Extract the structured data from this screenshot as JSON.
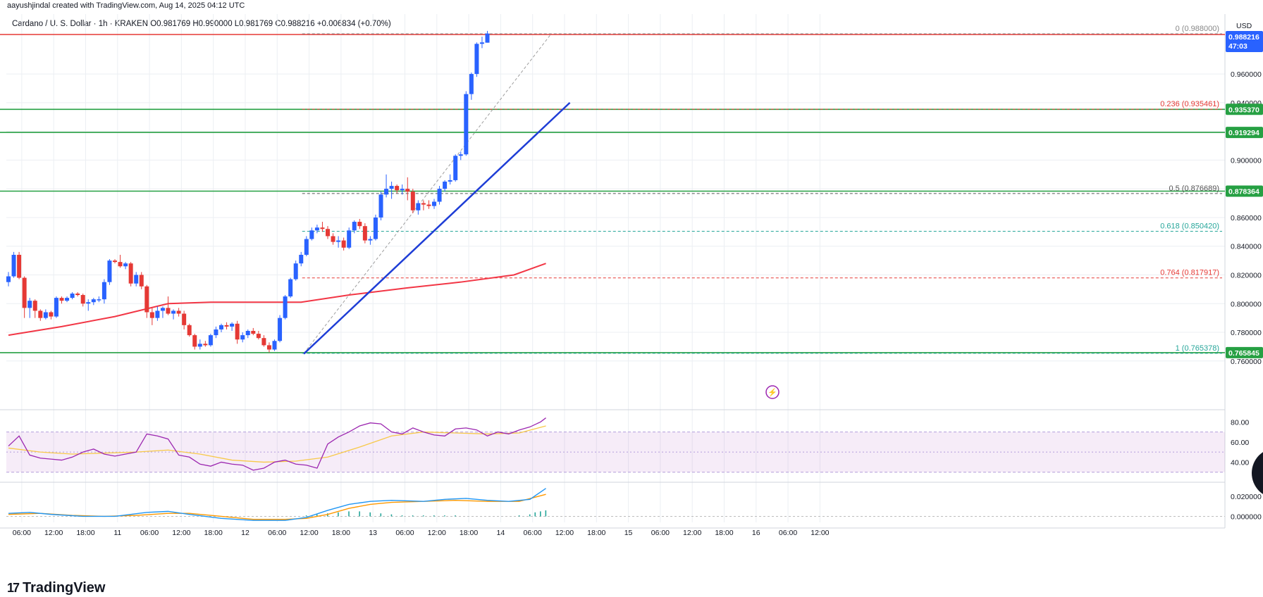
{
  "header": {
    "author_line": "aayushjindal created with TradingView.com, Aug 14, 2025 04:12 UTC",
    "symbol_line": "Cardano / U. S. Dollar · 1h · KRAKEN  O0.981769  H0.990000  L0.981769  C0.988216  +0.006834 (+0.70%)"
  },
  "brand": {
    "name": "TradingView",
    "logo": "17"
  },
  "currency_label": "USD",
  "last_price_tag": {
    "price": "0.988216",
    "countdown": "47:03",
    "color": "#2962ff"
  },
  "colors": {
    "up": "#2962ff",
    "down": "#e53935",
    "sma": "#f23645",
    "trendline": "#1e3dd6",
    "support": "#26a043",
    "rsi": "#9c27b0",
    "rsi_ma": "#f7c948",
    "macd": "#2196f3",
    "signal": "#ff9800",
    "hist": "#26a69a"
  },
  "chart_data": {
    "type": "candlestick",
    "instrument": "Cardano / U. S. Dollar",
    "timeframe": "1h",
    "exchange": "KRAKEN",
    "ohlc": {
      "open": 0.981769,
      "high": 0.99,
      "low": 0.981769,
      "close": 0.988216,
      "change": 0.006834,
      "change_pct": "+0.70%"
    },
    "y_range": [
      0.75,
      1.0
    ],
    "price_ticks": [
      "0.960000",
      "0.940000",
      "0.920000",
      "0.900000",
      "0.880000",
      "0.860000",
      "0.840000",
      "0.820000",
      "0.800000",
      "0.780000",
      "0.760000"
    ],
    "price_tick_values": [
      0.96,
      0.94,
      0.92,
      0.9,
      0.88,
      0.86,
      0.84,
      0.82,
      0.8,
      0.78,
      0.76
    ],
    "time_ticks": [
      "06:00",
      "12:00",
      "18:00",
      "11",
      "06:00",
      "12:00",
      "18:00",
      "12",
      "06:00",
      "12:00",
      "18:00",
      "13",
      "06:00",
      "12:00",
      "18:00",
      "14",
      "06:00",
      "12:00",
      "18:00",
      "15",
      "06:00",
      "12:00",
      "18:00",
      "16",
      "06:00",
      "12:00"
    ],
    "time_tick_hours": [
      6,
      12,
      18,
      24,
      30,
      36,
      42,
      48,
      54,
      60,
      66,
      72,
      78,
      84,
      90,
      96,
      102,
      108,
      114,
      120,
      126,
      132,
      138,
      144,
      150,
      156
    ],
    "horizontal_levels": [
      {
        "label": "0.935370",
        "value": 0.93537,
        "color": "#26a043"
      },
      {
        "label": "0.919294",
        "value": 0.919294,
        "color": "#26a043"
      },
      {
        "label": "0.878364",
        "value": 0.878364,
        "color": "#26a043"
      },
      {
        "label": "0.765845",
        "value": 0.765845,
        "color": "#26a043"
      }
    ],
    "resistance_line": {
      "value": 0.989,
      "color": "#e53935"
    },
    "fibonacci": [
      {
        "ratio": "0",
        "value": 0.988,
        "label": "0 (0.988000)",
        "color": "#888888"
      },
      {
        "ratio": "0.236",
        "value": 0.935461,
        "label": "0.236 (0.935461)",
        "color": "#e53935"
      },
      {
        "ratio": "0.5",
        "value": 0.876689,
        "label": "0.5 (0.876689)",
        "color": "#555555"
      },
      {
        "ratio": "0.618",
        "value": 0.85042,
        "label": "0.618 (0.850420)",
        "color": "#26a69a"
      },
      {
        "ratio": "0.764",
        "value": 0.817917,
        "label": "0.764 (0.817917)",
        "color": "#e53935"
      },
      {
        "ratio": "1",
        "value": 0.765378,
        "label": "1 (0.765378)",
        "color": "#26a69a"
      }
    ],
    "trendline": {
      "from": [
        55.5,
        0.765
      ],
      "to": [
        105.5,
        0.94
      ]
    },
    "candles": [
      [
        0.815,
        0.822,
        0.812,
        0.819
      ],
      [
        0.819,
        0.836,
        0.818,
        0.834
      ],
      [
        0.834,
        0.836,
        0.817,
        0.818
      ],
      [
        0.818,
        0.819,
        0.79,
        0.797
      ],
      [
        0.797,
        0.804,
        0.79,
        0.802
      ],
      [
        0.802,
        0.803,
        0.79,
        0.795
      ],
      [
        0.795,
        0.796,
        0.788,
        0.79
      ],
      [
        0.79,
        0.796,
        0.789,
        0.794
      ],
      [
        0.794,
        0.795,
        0.789,
        0.791
      ],
      [
        0.791,
        0.805,
        0.79,
        0.804
      ],
      [
        0.804,
        0.805,
        0.8,
        0.802
      ],
      [
        0.802,
        0.805,
        0.801,
        0.804
      ],
      [
        0.804,
        0.808,
        0.803,
        0.807
      ],
      [
        0.807,
        0.808,
        0.805,
        0.806
      ],
      [
        0.806,
        0.807,
        0.798,
        0.8
      ],
      [
        0.8,
        0.803,
        0.795,
        0.801
      ],
      [
        0.801,
        0.804,
        0.799,
        0.803
      ],
      [
        0.803,
        0.805,
        0.801,
        0.803
      ],
      [
        0.803,
        0.817,
        0.8,
        0.815
      ],
      [
        0.815,
        0.831,
        0.813,
        0.83
      ],
      [
        0.83,
        0.831,
        0.828,
        0.829
      ],
      [
        0.829,
        0.834,
        0.825,
        0.826
      ],
      [
        0.826,
        0.829,
        0.824,
        0.828
      ],
      [
        0.828,
        0.829,
        0.812,
        0.814
      ],
      [
        0.814,
        0.822,
        0.812,
        0.82
      ],
      [
        0.82,
        0.822,
        0.81,
        0.812
      ],
      [
        0.812,
        0.813,
        0.79,
        0.794
      ],
      [
        0.794,
        0.797,
        0.785,
        0.79
      ],
      [
        0.79,
        0.798,
        0.788,
        0.795
      ],
      [
        0.795,
        0.798,
        0.79,
        0.797
      ],
      [
        0.797,
        0.805,
        0.792,
        0.793
      ],
      [
        0.793,
        0.796,
        0.789,
        0.795
      ],
      [
        0.795,
        0.797,
        0.791,
        0.793
      ],
      [
        0.793,
        0.795,
        0.782,
        0.785
      ],
      [
        0.785,
        0.786,
        0.777,
        0.778
      ],
      [
        0.778,
        0.779,
        0.768,
        0.77
      ],
      [
        0.77,
        0.775,
        0.768,
        0.772
      ],
      [
        0.772,
        0.774,
        0.77,
        0.771
      ],
      [
        0.771,
        0.779,
        0.77,
        0.778
      ],
      [
        0.778,
        0.784,
        0.776,
        0.782
      ],
      [
        0.782,
        0.786,
        0.78,
        0.785
      ],
      [
        0.785,
        0.787,
        0.782,
        0.784
      ],
      [
        0.784,
        0.787,
        0.781,
        0.786
      ],
      [
        0.786,
        0.788,
        0.772,
        0.775
      ],
      [
        0.775,
        0.78,
        0.773,
        0.778
      ],
      [
        0.778,
        0.782,
        0.776,
        0.781
      ],
      [
        0.781,
        0.783,
        0.778,
        0.779
      ],
      [
        0.779,
        0.781,
        0.775,
        0.776
      ],
      [
        0.776,
        0.778,
        0.77,
        0.771
      ],
      [
        0.771,
        0.773,
        0.766,
        0.768
      ],
      [
        0.768,
        0.775,
        0.767,
        0.774
      ],
      [
        0.774,
        0.792,
        0.773,
        0.79
      ],
      [
        0.79,
        0.806,
        0.789,
        0.805
      ],
      [
        0.805,
        0.818,
        0.804,
        0.817
      ],
      [
        0.817,
        0.83,
        0.816,
        0.828
      ],
      [
        0.828,
        0.836,
        0.826,
        0.834
      ],
      [
        0.834,
        0.847,
        0.833,
        0.845
      ],
      [
        0.845,
        0.853,
        0.844,
        0.851
      ],
      [
        0.851,
        0.855,
        0.849,
        0.853
      ],
      [
        0.853,
        0.857,
        0.85,
        0.852
      ],
      [
        0.852,
        0.854,
        0.845,
        0.847
      ],
      [
        0.847,
        0.849,
        0.841,
        0.843
      ],
      [
        0.843,
        0.847,
        0.839,
        0.844
      ],
      [
        0.844,
        0.846,
        0.837,
        0.839
      ],
      [
        0.839,
        0.853,
        0.838,
        0.851
      ],
      [
        0.851,
        0.858,
        0.849,
        0.857
      ],
      [
        0.857,
        0.859,
        0.852,
        0.854
      ],
      [
        0.854,
        0.856,
        0.842,
        0.844
      ],
      [
        0.844,
        0.847,
        0.841,
        0.845
      ],
      [
        0.845,
        0.862,
        0.844,
        0.86
      ],
      [
        0.86,
        0.878,
        0.858,
        0.876
      ],
      [
        0.876,
        0.89,
        0.874,
        0.88
      ],
      [
        0.88,
        0.885,
        0.873,
        0.882
      ],
      [
        0.882,
        0.883,
        0.877,
        0.879
      ],
      [
        0.879,
        0.883,
        0.876,
        0.88
      ],
      [
        0.88,
        0.888,
        0.872,
        0.878
      ],
      [
        0.878,
        0.88,
        0.863,
        0.865
      ],
      [
        0.865,
        0.872,
        0.862,
        0.87
      ],
      [
        0.87,
        0.872,
        0.865,
        0.869
      ],
      [
        0.869,
        0.872,
        0.866,
        0.868
      ],
      [
        0.868,
        0.873,
        0.866,
        0.871
      ],
      [
        0.871,
        0.882,
        0.869,
        0.88
      ],
      [
        0.88,
        0.886,
        0.878,
        0.885
      ],
      [
        0.885,
        0.89,
        0.883,
        0.886
      ],
      [
        0.886,
        0.904,
        0.885,
        0.903
      ],
      [
        0.903,
        0.906,
        0.9,
        0.904
      ],
      [
        0.904,
        0.948,
        0.903,
        0.946
      ],
      [
        0.946,
        0.961,
        0.942,
        0.96
      ],
      [
        0.96,
        0.982,
        0.958,
        0.981
      ],
      [
        0.981,
        0.986,
        0.978,
        0.982
      ],
      [
        0.9818,
        0.99,
        0.9818,
        0.9882
      ]
    ],
    "sma": [
      [
        0,
        0.778
      ],
      [
        10,
        0.784
      ],
      [
        20,
        0.791
      ],
      [
        30,
        0.8
      ],
      [
        38,
        0.801
      ],
      [
        48,
        0.801
      ],
      [
        55,
        0.801
      ],
      [
        64,
        0.806
      ],
      [
        75,
        0.811
      ],
      [
        85,
        0.815
      ],
      [
        95,
        0.82
      ],
      [
        101,
        0.828
      ]
    ],
    "rsi": {
      "levels": [
        70,
        30
      ],
      "ticks": [
        "80.00",
        "60.00",
        "40.00"
      ],
      "tick_values": [
        80,
        60,
        40
      ],
      "range": [
        20,
        90
      ],
      "values": [
        [
          0,
          56
        ],
        [
          2,
          66
        ],
        [
          4,
          47
        ],
        [
          6,
          44
        ],
        [
          8,
          43
        ],
        [
          10,
          42
        ],
        [
          12,
          45
        ],
        [
          14,
          50
        ],
        [
          16,
          53
        ],
        [
          18,
          48
        ],
        [
          20,
          46
        ],
        [
          22,
          48
        ],
        [
          24,
          50
        ],
        [
          26,
          68
        ],
        [
          28,
          66
        ],
        [
          30,
          63
        ],
        [
          32,
          47
        ],
        [
          34,
          45
        ],
        [
          36,
          38
        ],
        [
          38,
          36
        ],
        [
          40,
          40
        ],
        [
          42,
          38
        ],
        [
          44,
          37
        ],
        [
          46,
          32
        ],
        [
          48,
          34
        ],
        [
          50,
          40
        ],
        [
          52,
          42
        ],
        [
          54,
          38
        ],
        [
          56,
          37
        ],
        [
          58,
          34
        ],
        [
          60,
          58
        ],
        [
          62,
          65
        ],
        [
          64,
          70
        ],
        [
          66,
          76
        ],
        [
          68,
          79
        ],
        [
          70,
          78
        ],
        [
          72,
          70
        ],
        [
          74,
          68
        ],
        [
          76,
          74
        ],
        [
          78,
          70
        ],
        [
          80,
          67
        ],
        [
          82,
          66
        ],
        [
          84,
          73
        ],
        [
          86,
          74
        ],
        [
          88,
          72
        ],
        [
          90,
          66
        ],
        [
          92,
          70
        ],
        [
          94,
          68
        ],
        [
          96,
          72
        ],
        [
          98,
          75
        ],
        [
          100,
          80
        ],
        [
          101,
          84
        ]
      ],
      "ma": [
        [
          0,
          54
        ],
        [
          6,
          50
        ],
        [
          12,
          48
        ],
        [
          18,
          49
        ],
        [
          24,
          50
        ],
        [
          30,
          52
        ],
        [
          36,
          48
        ],
        [
          42,
          42
        ],
        [
          48,
          40
        ],
        [
          54,
          41
        ],
        [
          60,
          45
        ],
        [
          66,
          55
        ],
        [
          72,
          66
        ],
        [
          78,
          70
        ],
        [
          84,
          69
        ],
        [
          90,
          68
        ],
        [
          96,
          69
        ],
        [
          101,
          76
        ]
      ]
    },
    "macd": {
      "ticks": [
        "0.020000",
        "0.000000"
      ],
      "tick_values": [
        0.02,
        0.0
      ],
      "range": [
        -0.006,
        0.032
      ],
      "macd": [
        [
          0,
          0.003
        ],
        [
          4,
          0.004
        ],
        [
          8,
          0.002
        ],
        [
          14,
          0.0
        ],
        [
          20,
          0.0
        ],
        [
          26,
          0.004
        ],
        [
          30,
          0.005
        ],
        [
          34,
          0.002
        ],
        [
          40,
          -0.002
        ],
        [
          46,
          -0.004
        ],
        [
          52,
          -0.004
        ],
        [
          56,
          -0.001
        ],
        [
          60,
          0.006
        ],
        [
          64,
          0.012
        ],
        [
          68,
          0.015
        ],
        [
          72,
          0.016
        ],
        [
          78,
          0.015
        ],
        [
          82,
          0.017
        ],
        [
          86,
          0.018
        ],
        [
          90,
          0.016
        ],
        [
          94,
          0.015
        ],
        [
          98,
          0.017
        ],
        [
          101,
          0.028
        ]
      ],
      "signal": [
        [
          0,
          0.002
        ],
        [
          6,
          0.003
        ],
        [
          12,
          0.001
        ],
        [
          18,
          0.0
        ],
        [
          24,
          0.001
        ],
        [
          30,
          0.003
        ],
        [
          34,
          0.003
        ],
        [
          40,
          0.0
        ],
        [
          46,
          -0.003
        ],
        [
          52,
          -0.003
        ],
        [
          56,
          -0.002
        ],
        [
          60,
          0.002
        ],
        [
          64,
          0.008
        ],
        [
          68,
          0.012
        ],
        [
          72,
          0.014
        ],
        [
          78,
          0.015
        ],
        [
          84,
          0.016
        ],
        [
          90,
          0.015
        ],
        [
          96,
          0.015
        ],
        [
          101,
          0.022
        ]
      ],
      "hist": [
        [
          56,
          0.001
        ],
        [
          58,
          0.002
        ],
        [
          60,
          0.003
        ],
        [
          62,
          0.004
        ],
        [
          64,
          0.005
        ],
        [
          66,
          0.005
        ],
        [
          68,
          0.004
        ],
        [
          70,
          0.003
        ],
        [
          72,
          0.002
        ],
        [
          74,
          0.001
        ],
        [
          76,
          0.001
        ],
        [
          78,
          0.001
        ],
        [
          80,
          0.001
        ],
        [
          82,
          0.001
        ],
        [
          84,
          0.001
        ],
        [
          96,
          0.001
        ],
        [
          98,
          0.002
        ],
        [
          99,
          0.004
        ],
        [
          100,
          0.005
        ],
        [
          101,
          0.006
        ]
      ]
    }
  }
}
